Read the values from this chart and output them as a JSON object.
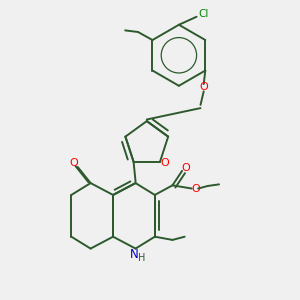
{
  "background_color": "#f0f0f0",
  "bond_color": "#2d5a2d",
  "bond_width": 1.4,
  "atom_colors": {
    "O": "#ff0000",
    "N": "#0000cc",
    "Cl": "#008800",
    "C": "#2d5a2d",
    "H": "#2d5a2d"
  },
  "figsize": [
    3.0,
    3.0
  ],
  "dpi": 100
}
